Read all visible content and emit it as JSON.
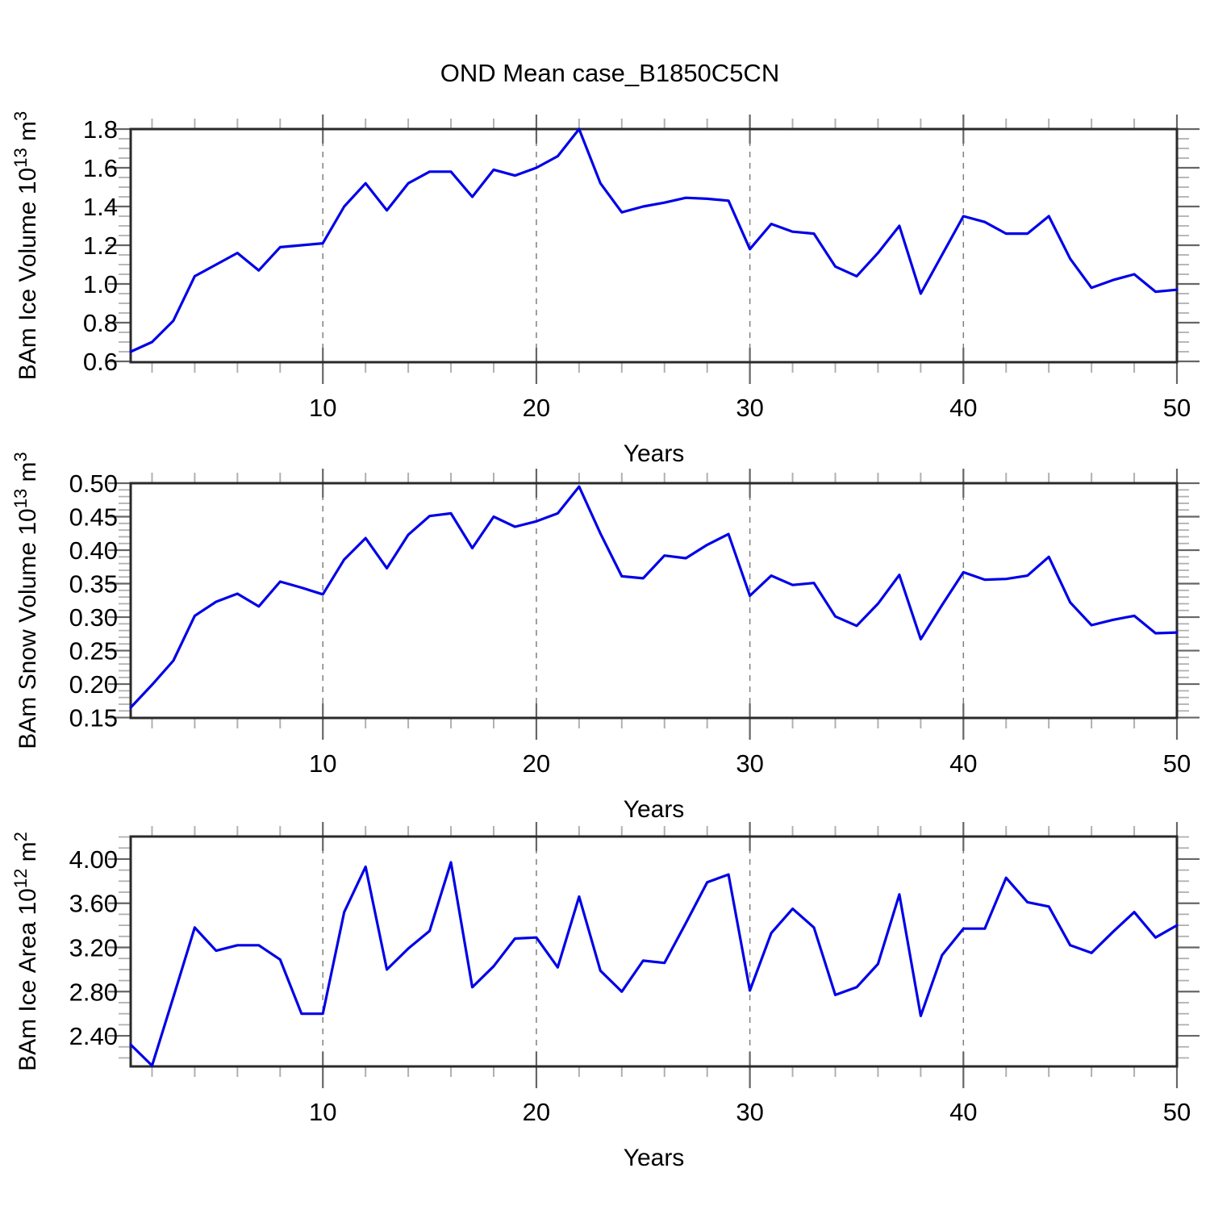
{
  "title": "OND Mean case_B1850C5CN",
  "colors": {
    "line": "#0000e8",
    "grid": "#808080",
    "frame": "#2a2a2a",
    "tick_major": "#666666",
    "tick_minor": "#b0b0b0",
    "text": "#000000",
    "background": "#ffffff"
  },
  "chart_data": [
    {
      "type": "line",
      "id": "ice-volume",
      "title": "OND Mean case_B1850C5CN",
      "xlabel": "Years",
      "ylabel": "BAm Ice Volume 10^13 m^3",
      "ylabel_parts": [
        {
          "t": "BAm Ice Volume 10"
        },
        {
          "t": "13",
          "sup": true
        },
        {
          "t": " m"
        },
        {
          "t": "3",
          "sup": true
        }
      ],
      "x_start": 1,
      "x_end": 50,
      "values": [
        0.65,
        0.7,
        0.81,
        1.04,
        1.1,
        1.16,
        1.07,
        1.19,
        1.2,
        1.21,
        1.4,
        1.52,
        1.38,
        1.52,
        1.58,
        1.58,
        1.45,
        1.59,
        1.56,
        1.6,
        1.66,
        1.8,
        1.52,
        1.37,
        1.4,
        1.42,
        1.445,
        1.44,
        1.43,
        1.18,
        1.31,
        1.27,
        1.26,
        1.09,
        1.04,
        1.16,
        1.3,
        0.95,
        1.15,
        1.35,
        1.32,
        1.26,
        1.26,
        1.35,
        1.13,
        0.98,
        1.02,
        1.05,
        0.96,
        0.97
      ],
      "ylim": [
        0.5958,
        1.8
      ],
      "yticks": [
        {
          "v": 0.6,
          "label": "0.6"
        },
        {
          "v": 0.8,
          "label": "0.8"
        },
        {
          "v": 1.0,
          "label": "1.0"
        },
        {
          "v": 1.2,
          "label": "1.2"
        },
        {
          "v": 1.4,
          "label": "1.4"
        },
        {
          "v": 1.6,
          "label": "1.6"
        },
        {
          "v": 1.8,
          "label": "1.8"
        }
      ],
      "ytick_major_step": 0.2,
      "ytick_minor_step": 0.05,
      "xticks": [
        {
          "v": 10,
          "label": "10"
        },
        {
          "v": 20,
          "label": "20"
        },
        {
          "v": 30,
          "label": "30"
        },
        {
          "v": 40,
          "label": "40"
        },
        {
          "v": 50,
          "label": "50"
        }
      ],
      "xtick_minor_step": 2,
      "grid_x": [
        10,
        20,
        30,
        40
      ],
      "grid_style": "dashed",
      "legend": "none"
    },
    {
      "type": "line",
      "id": "snow-volume",
      "title": "",
      "xlabel": "Years",
      "ylabel": "BAm Snow Volume 10^13 m^3",
      "ylabel_parts": [
        {
          "t": "BAm Snow Volume 10"
        },
        {
          "t": "13",
          "sup": true
        },
        {
          "t": " m"
        },
        {
          "t": "3",
          "sup": true
        }
      ],
      "x_start": 1,
      "x_end": 50,
      "values": [
        0.165,
        0.199,
        0.235,
        0.302,
        0.323,
        0.335,
        0.316,
        0.353,
        0.344,
        0.334,
        0.386,
        0.418,
        0.373,
        0.423,
        0.451,
        0.455,
        0.403,
        0.45,
        0.435,
        0.443,
        0.455,
        0.495,
        0.425,
        0.361,
        0.358,
        0.392,
        0.388,
        0.408,
        0.424,
        0.332,
        0.362,
        0.348,
        0.351,
        0.301,
        0.287,
        0.32,
        0.363,
        0.267,
        0.318,
        0.367,
        0.356,
        0.357,
        0.362,
        0.39,
        0.322,
        0.288,
        0.296,
        0.302,
        0.276,
        0.277
      ],
      "ylim": [
        0.1495,
        0.5
      ],
      "yticks": [
        {
          "v": 0.15,
          "label": "0.15"
        },
        {
          "v": 0.2,
          "label": "0.20"
        },
        {
          "v": 0.25,
          "label": "0.25"
        },
        {
          "v": 0.3,
          "label": "0.30"
        },
        {
          "v": 0.35,
          "label": "0.35"
        },
        {
          "v": 0.4,
          "label": "0.40"
        },
        {
          "v": 0.45,
          "label": "0.45"
        },
        {
          "v": 0.5,
          "label": "0.50"
        }
      ],
      "ytick_major_step": 0.05,
      "ytick_minor_step": 0.01,
      "xticks": [
        {
          "v": 10,
          "label": "10"
        },
        {
          "v": 20,
          "label": "20"
        },
        {
          "v": 30,
          "label": "30"
        },
        {
          "v": 40,
          "label": "40"
        },
        {
          "v": 50,
          "label": "50"
        }
      ],
      "xtick_minor_step": 2,
      "grid_x": [
        10,
        20,
        30,
        40
      ],
      "grid_style": "dashed",
      "legend": "none"
    },
    {
      "type": "line",
      "id": "ice-area",
      "title": "",
      "xlabel": "Years",
      "ylabel": "BAm Ice Area 10^12 m^2",
      "ylabel_parts": [
        {
          "t": "BAm Ice Area 10"
        },
        {
          "t": "12",
          "sup": true
        },
        {
          "t": " m"
        },
        {
          "t": "2",
          "sup": true
        }
      ],
      "x_start": 1,
      "x_end": 50,
      "values": [
        2.32,
        2.13,
        2.75,
        3.38,
        3.17,
        3.22,
        3.22,
        3.09,
        2.6,
        2.6,
        3.52,
        3.93,
        3.0,
        3.19,
        3.35,
        3.97,
        2.84,
        3.03,
        3.28,
        3.29,
        3.02,
        3.66,
        2.99,
        2.8,
        3.08,
        3.06,
        3.42,
        3.79,
        3.86,
        2.81,
        3.33,
        3.55,
        3.38,
        2.77,
        2.84,
        3.05,
        3.68,
        2.58,
        3.13,
        3.37,
        3.37,
        3.83,
        3.61,
        3.57,
        3.22,
        3.15,
        3.34,
        3.52,
        3.29,
        3.4
      ],
      "ylim": [
        2.123,
        4.204
      ],
      "yticks": [
        {
          "v": 2.4,
          "label": "2.40"
        },
        {
          "v": 2.8,
          "label": "2.80"
        },
        {
          "v": 3.2,
          "label": "3.20"
        },
        {
          "v": 3.6,
          "label": "3.60"
        },
        {
          "v": 4.0,
          "label": "4.00"
        }
      ],
      "ytick_major_step": 0.4,
      "ytick_minor_step": 0.1,
      "xticks": [
        {
          "v": 10,
          "label": "10"
        },
        {
          "v": 20,
          "label": "20"
        },
        {
          "v": 30,
          "label": "30"
        },
        {
          "v": 40,
          "label": "40"
        },
        {
          "v": 50,
          "label": "50"
        }
      ],
      "xtick_minor_step": 2,
      "grid_x": [
        10,
        20,
        30,
        40
      ],
      "grid_style": "dashed",
      "legend": "none"
    }
  ]
}
